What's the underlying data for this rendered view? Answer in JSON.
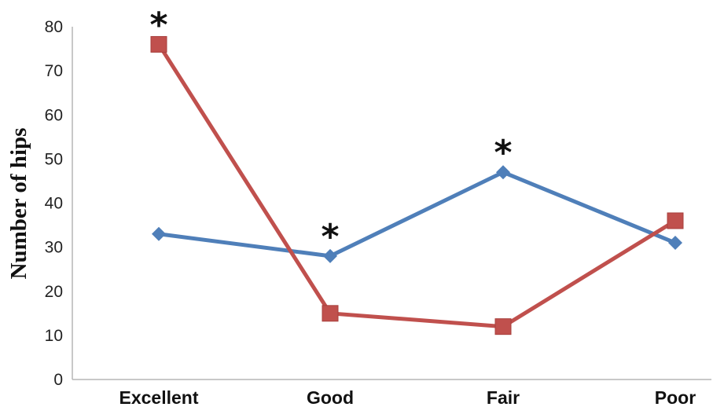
{
  "chart_data": {
    "type": "line",
    "categories": [
      "Excellent",
      "Good",
      "Fair",
      "Poor"
    ],
    "series": [
      {
        "values": [
          33,
          28,
          47,
          31
        ],
        "color": "#4f7fb9",
        "marker": "diamond"
      },
      {
        "values": [
          76,
          15,
          12,
          36
        ],
        "color": "#c0504d",
        "marker": "square"
      }
    ],
    "ylabel": "Number of hips",
    "xlabel": "",
    "ylim": [
      0,
      80
    ],
    "yticks": [
      "0",
      "10",
      "20",
      "30",
      "40",
      "50",
      "60",
      "70",
      "80"
    ],
    "grid": false,
    "annotations": [
      {
        "text": "*",
        "category": "Excellent",
        "series": 1
      },
      {
        "text": "*",
        "category": "Good",
        "series": 0
      },
      {
        "text": "*",
        "category": "Fair",
        "series": 0
      }
    ]
  }
}
